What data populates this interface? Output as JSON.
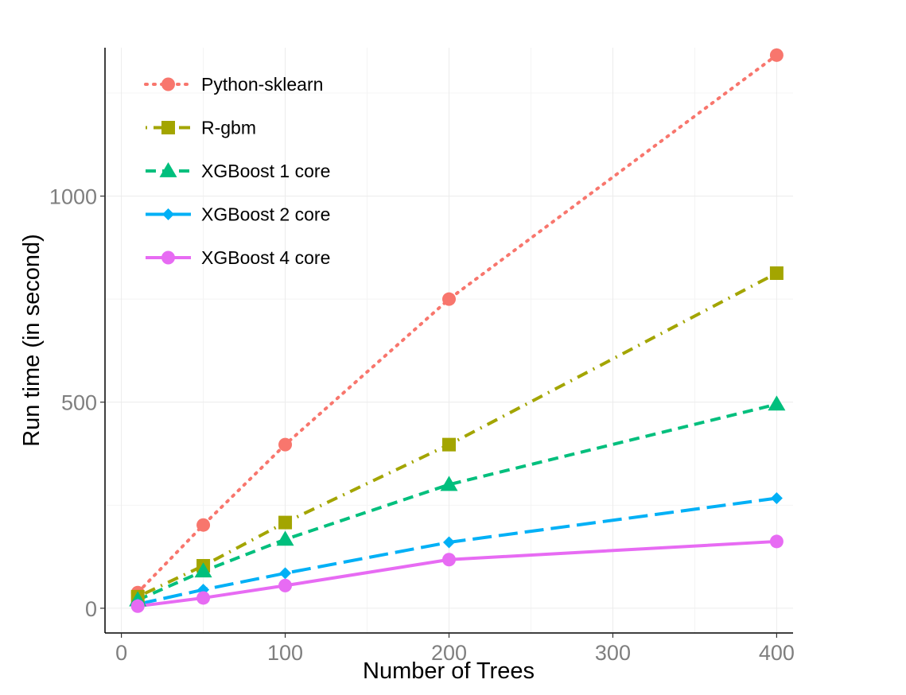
{
  "chart_data": {
    "type": "line",
    "title": "",
    "xlabel": "Number of Trees",
    "ylabel": "Run time (in second)",
    "xlim": [
      -10,
      410
    ],
    "ylim": [
      -60,
      1360
    ],
    "x_ticks": [
      0,
      100,
      200,
      300,
      400
    ],
    "x_tick_labels": [
      "0",
      "100",
      "200",
      "300",
      "400"
    ],
    "y_ticks": [
      0,
      500,
      1000
    ],
    "y_tick_labels": [
      "0",
      "500",
      "1000"
    ],
    "grid": true,
    "legend_position": "top-left",
    "x": [
      10,
      50,
      100,
      200,
      400
    ],
    "series": [
      {
        "name": "Python-sklearn",
        "values": [
          38,
          202,
          397,
          750,
          1342
        ],
        "color": "#F8766D",
        "marker": "circle",
        "line": "dotted"
      },
      {
        "name": "R-gbm",
        "values": [
          28,
          103,
          208,
          397,
          813
        ],
        "color": "#A3A500",
        "marker": "square",
        "line": "dotdash"
      },
      {
        "name": "XGBoost 1 core",
        "values": [
          20,
          90,
          167,
          300,
          495
        ],
        "color": "#00BF7D",
        "marker": "triangle",
        "line": "dashed"
      },
      {
        "name": "XGBoost 2 core",
        "values": [
          10,
          45,
          85,
          160,
          267
        ],
        "color": "#00B0F6",
        "marker": "diamond",
        "line": "longdash"
      },
      {
        "name": "XGBoost 4 core",
        "values": [
          5,
          25,
          55,
          118,
          162
        ],
        "color": "#E76BF3",
        "marker": "circle",
        "line": "solid"
      }
    ]
  }
}
